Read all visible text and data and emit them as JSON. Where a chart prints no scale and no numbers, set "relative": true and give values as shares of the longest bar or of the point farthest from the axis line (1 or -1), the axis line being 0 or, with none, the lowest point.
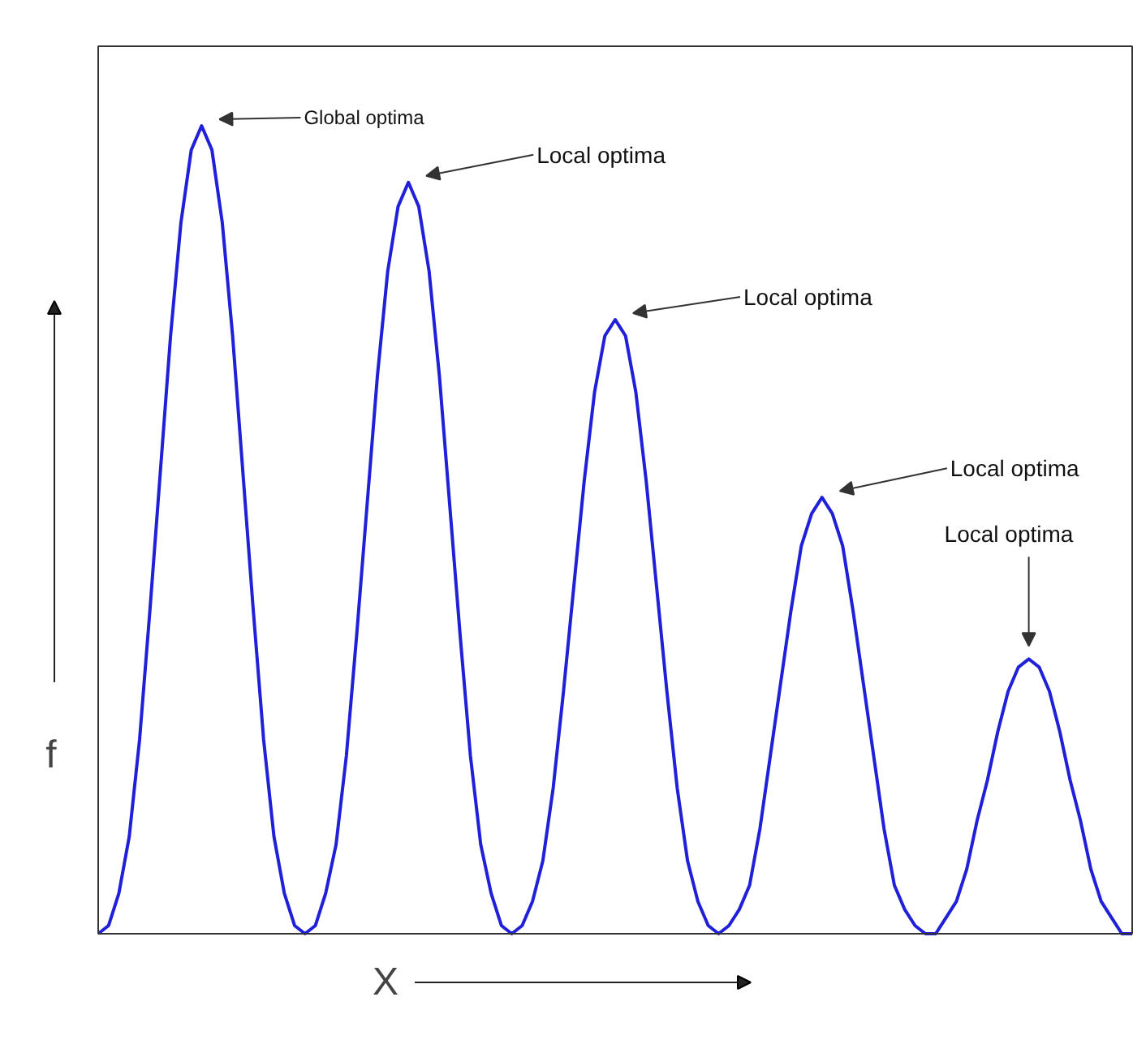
{
  "chart_data": {
    "type": "line",
    "relative": true,
    "xlabel": "X",
    "ylabel": "f",
    "grid": false,
    "categories": [
      null,
      null,
      null,
      null,
      null,
      null,
      null,
      null,
      null,
      null,
      null,
      null,
      null,
      null,
      null,
      null,
      null,
      null,
      null,
      null,
      null,
      null,
      null,
      null,
      null,
      null,
      null,
      null,
      null,
      null,
      null,
      null,
      null,
      null,
      null,
      null,
      null,
      null,
      null,
      null,
      null,
      null,
      null,
      null,
      null,
      null,
      null,
      null,
      null,
      null,
      null,
      null,
      null,
      null,
      null,
      null,
      null,
      null,
      null,
      null,
      null,
      null,
      null,
      null,
      null,
      null,
      null,
      null,
      null,
      null,
      null,
      null,
      null,
      null,
      null,
      null,
      null,
      null,
      null,
      null,
      null,
      null,
      null,
      null,
      null,
      null,
      null,
      null,
      null,
      null,
      null,
      null,
      null,
      null,
      null,
      null,
      null,
      null,
      null,
      null,
      null
    ],
    "series": [
      {
        "color": "#2020d8",
        "values": [
          0,
          0.01,
          0.05,
          0.12,
          0.24,
          0.4,
          0.57,
          0.74,
          0.88,
          0.97,
          1,
          0.97,
          0.88,
          0.74,
          0.57,
          0.4,
          0.24,
          0.12,
          0.05,
          0.01,
          0,
          0.01,
          0.05,
          0.11,
          0.22,
          0.37,
          0.53,
          0.69,
          0.82,
          0.9,
          0.93,
          0.9,
          0.82,
          0.69,
          0.53,
          0.37,
          0.22,
          0.11,
          0.05,
          0.01,
          0,
          0.01,
          0.04,
          0.09,
          0.18,
          0.3,
          0.43,
          0.56,
          0.67,
          0.74,
          0.76,
          0.74,
          0.67,
          0.56,
          0.43,
          0.3,
          0.18,
          0.09,
          0.04,
          0.01,
          0,
          0.01,
          0.03,
          0.06,
          0.13,
          0.22,
          0.31,
          0.4,
          0.48,
          0.52,
          0.54,
          0.52,
          0.48,
          0.4,
          0.31,
          0.22,
          0.13,
          0.06,
          0.03,
          0.01,
          0,
          0,
          0.02,
          0.04,
          0.08,
          0.14,
          0.19,
          0.25,
          0.3,
          0.33,
          0.34,
          0.33,
          0.3,
          0.25,
          0.19,
          0.14,
          0.08,
          0.04,
          0.02,
          0,
          0
        ]
      }
    ],
    "annotations": [
      "Global optima",
      "Local optima",
      "Local optima",
      "Local optima",
      "Local optima"
    ]
  }
}
